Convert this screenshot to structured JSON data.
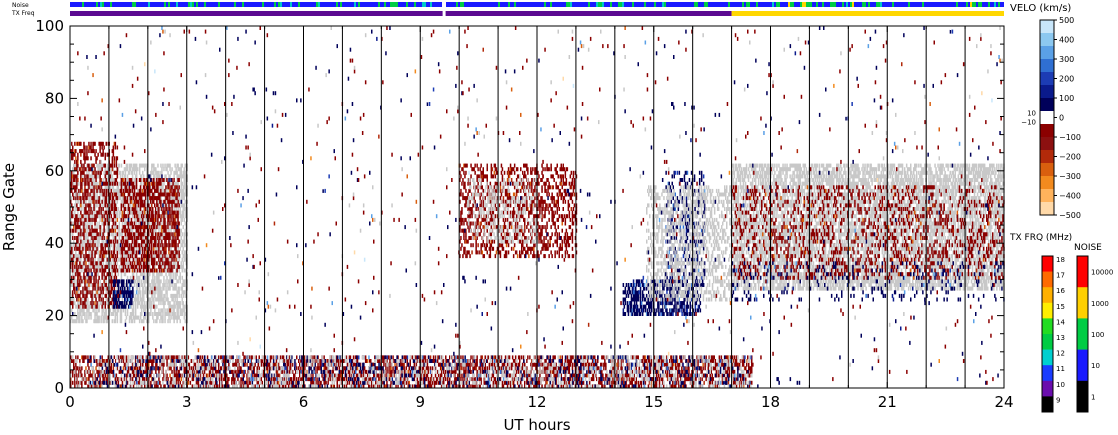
{
  "chart_data": {
    "type": "heatmap",
    "xlabel": "UT hours",
    "ylabel": "Range Gate",
    "xlim": [
      0,
      24
    ],
    "ylim": [
      0,
      100
    ],
    "x_ticks": [
      0,
      3,
      6,
      9,
      12,
      15,
      18,
      21,
      24
    ],
    "y_ticks": [
      0,
      20,
      40,
      60,
      80,
      100
    ],
    "x_minor_step_hours": 1,
    "gridlines": "vertical black line at every hour",
    "strip_labels": {
      "noise": "Noise",
      "tx_freq": "TX Freq"
    },
    "data_gap_hours": [
      9.6
    ],
    "tx_freq_strip": [
      {
        "from": 0,
        "to": 17.0,
        "color": "#5b0a91",
        "mhz": 10
      },
      {
        "from": 17.0,
        "to": 24,
        "color": "#ffd700",
        "mhz": 15
      }
    ],
    "noise_strip": {
      "dominant_color": "#1a1aff",
      "accent_colors": [
        "#00cc44",
        "#00c8c8",
        "#ffd700"
      ]
    },
    "velocity_colorbar": {
      "title": "VELO (km/s)",
      "range": [
        -500,
        500
      ],
      "ticks": [
        500,
        400,
        300,
        200,
        100,
        0,
        -100,
        -200,
        -300,
        -400,
        -500
      ],
      "zero_band_labels": [
        "10",
        "−10"
      ],
      "colors": [
        "#ffd9a8",
        "#ffb35c",
        "#f28a1e",
        "#d95f0e",
        "#b22a0a",
        "#8c1010",
        "#8b0000",
        "#ffffff",
        "#00005a",
        "#0a1a8c",
        "#1c3cb4",
        "#2f6fd2",
        "#5aa0e6",
        "#8cc8f0",
        "#c8e6fa"
      ]
    },
    "tx_freq_colorbar": {
      "title": "TX FRQ (MHz)",
      "ticks": [
        18,
        17,
        16,
        15,
        14,
        13,
        12,
        11,
        10,
        9
      ],
      "colors": [
        "#ff0000",
        "#ff6a00",
        "#ffb000",
        "#ffee00",
        "#22dd22",
        "#00cc44",
        "#00d0d0",
        "#1a3cff",
        "#6a0dad",
        "#000000"
      ]
    },
    "noise_colorbar": {
      "title": "NOISE",
      "ticks": [
        "10000",
        "1000",
        "100",
        "10",
        "1"
      ],
      "colors": [
        "#ff0000",
        "#ffd000",
        "#00cc44",
        "#1a1aff",
        "#000000"
      ]
    },
    "ground_scatter_color": "#c8c8c8",
    "regions": [
      {
        "kind": "ground_scatter",
        "x": [
          0.0,
          3.0
        ],
        "y": [
          18,
          62
        ],
        "density": 0.55
      },
      {
        "kind": "negative_velocity",
        "x": [
          0.0,
          1.2
        ],
        "y": [
          22,
          68
        ],
        "density": 0.35
      },
      {
        "kind": "negative_velocity",
        "x": [
          1.3,
          2.8
        ],
        "y": [
          32,
          58
        ],
        "density": 0.5
      },
      {
        "kind": "positive_velocity",
        "x": [
          1.1,
          1.6
        ],
        "y": [
          22,
          30
        ],
        "density": 0.6
      },
      {
        "kind": "negative_velocity",
        "x": [
          10.0,
          13.0
        ],
        "y": [
          36,
          62
        ],
        "density": 0.35
      },
      {
        "kind": "ground_scatter",
        "x": [
          10.2,
          12.0
        ],
        "y": [
          40,
          58
        ],
        "density": 0.2
      },
      {
        "kind": "positive_velocity",
        "x": [
          14.2,
          16.2
        ],
        "y": [
          20,
          30
        ],
        "density": 0.55
      },
      {
        "kind": "positive_velocity",
        "x": [
          15.3,
          16.3
        ],
        "y": [
          28,
          60
        ],
        "density": 0.25
      },
      {
        "kind": "ground_scatter",
        "x": [
          14.8,
          17.0
        ],
        "y": [
          24,
          56
        ],
        "density": 0.35
      },
      {
        "kind": "ground_scatter",
        "x": [
          17.0,
          24.0
        ],
        "y": [
          27,
          62
        ],
        "density": 0.6
      },
      {
        "kind": "negative_velocity",
        "x": [
          17.0,
          24.0
        ],
        "y": [
          30,
          56
        ],
        "density": 0.18
      },
      {
        "kind": "positive_velocity",
        "x": [
          17.0,
          24.0
        ],
        "y": [
          24,
          35
        ],
        "density": 0.08
      },
      {
        "kind": "negative_velocity",
        "x": [
          0.0,
          17.5
        ],
        "y": [
          0,
          9
        ],
        "density": 0.45
      },
      {
        "kind": "positive_velocity",
        "x": [
          0.5,
          17.5
        ],
        "y": [
          0,
          9
        ],
        "density": 0.12
      },
      {
        "kind": "ground_scatter",
        "x": [
          0.0,
          17.5
        ],
        "y": [
          0,
          9
        ],
        "density": 0.15
      },
      {
        "kind": "mixed_sparse",
        "x": [
          0.0,
          24.0
        ],
        "y": [
          0,
          100
        ],
        "density": 0.012
      }
    ]
  }
}
